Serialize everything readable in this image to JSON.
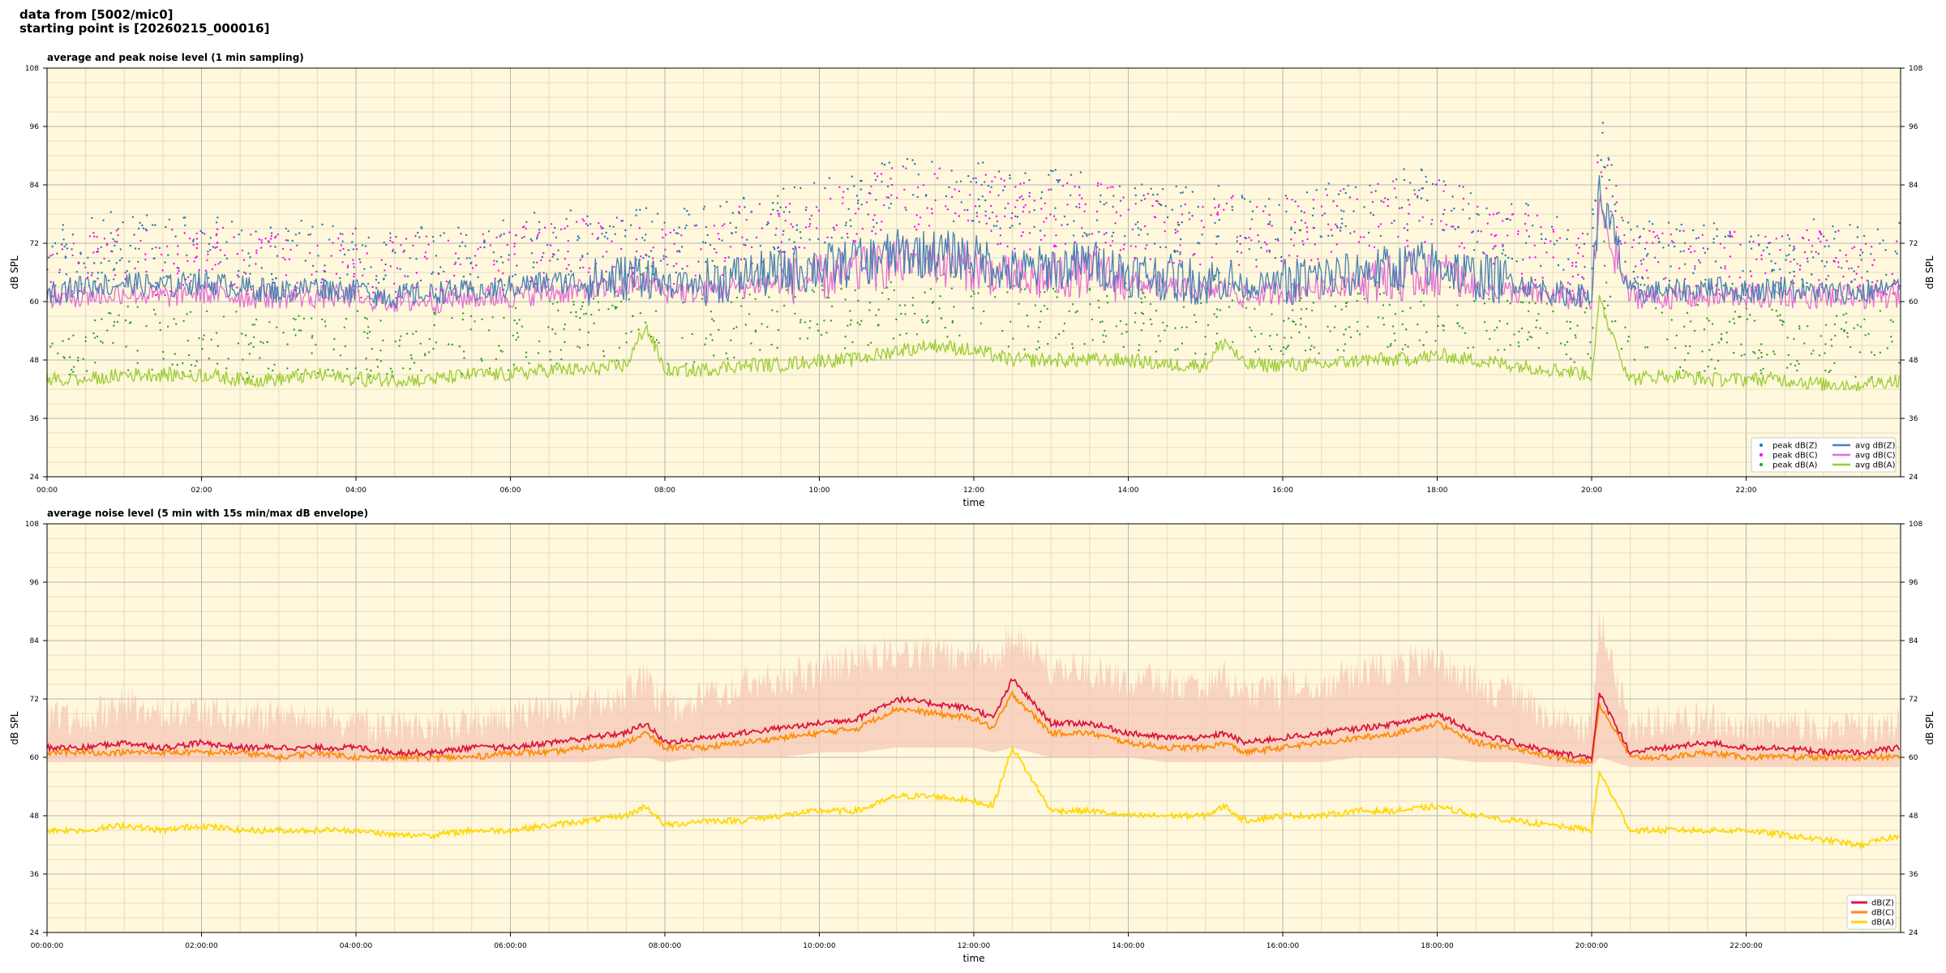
{
  "header": {
    "line1": "data from [5002/mic0]",
    "line2": "starting point is [20260215_000016]"
  },
  "colors": {
    "plot_bg": "#fff8dc",
    "grid_major": "#b5b5b5",
    "grid_minor": "#e3dcc0",
    "peak_z": "#1f77b4",
    "peak_c": "#ff00ff",
    "peak_a": "#2ca02c",
    "avg_z": "#4a7fb5",
    "avg_c": "#e36fd6",
    "avg_a": "#9acd32",
    "env": "#f6c8b8",
    "z": "#dc143c",
    "c": "#ff8c00",
    "a": "#ffd700"
  },
  "chart_data": [
    {
      "type": "line",
      "title": "average and peak noise level (1 min sampling)",
      "xlabel": "time",
      "ylabel": "dB SPL",
      "xlim_hours": [
        0,
        24
      ],
      "ylim": [
        24,
        108
      ],
      "yticks": [
        24,
        36,
        48,
        60,
        72,
        84,
        96,
        108
      ],
      "xtick_labels": [
        "00:00",
        "02:00",
        "04:00",
        "06:00",
        "08:00",
        "10:00",
        "12:00",
        "14:00",
        "16:00",
        "18:00",
        "20:00",
        "22:00"
      ],
      "grid": true,
      "legend_position": "lower-right",
      "legend": [
        "peak dB(Z)",
        "peak dB(C)",
        "peak dB(A)",
        "avg dB(Z)",
        "avg dB(C)",
        "avg dB(A)"
      ],
      "x_hours": [
        0,
        0.5,
        1,
        1.5,
        2,
        2.5,
        3,
        3.5,
        4,
        4.5,
        5,
        5.5,
        6,
        6.5,
        7,
        7.5,
        7.75,
        8,
        8.5,
        9,
        9.5,
        10,
        10.5,
        11,
        11.5,
        12,
        12.25,
        12.5,
        13,
        13.5,
        14,
        14.5,
        15,
        15.25,
        15.5,
        16,
        16.5,
        17,
        17.5,
        18,
        18.5,
        19,
        19.5,
        20,
        20.1,
        20.5,
        21,
        21.5,
        22,
        22.5,
        23,
        23.5,
        24
      ],
      "series": [
        {
          "name": "avg dB(Z)",
          "values": [
            62,
            63,
            64,
            63,
            64,
            63,
            62,
            63,
            62,
            61,
            62,
            62,
            63,
            64,
            64,
            65,
            66,
            63,
            64,
            65,
            66,
            67,
            68,
            70,
            70,
            69,
            68,
            66,
            67,
            68,
            66,
            65,
            64,
            65,
            63,
            64,
            65,
            66,
            67,
            68,
            65,
            64,
            62,
            61,
            82,
            62,
            62,
            63,
            62,
            63,
            62,
            62,
            63
          ]
        },
        {
          "name": "avg dB(C)",
          "values": [
            61,
            61,
            62,
            61,
            62,
            61,
            61,
            61,
            61,
            60,
            60,
            61,
            61,
            62,
            62,
            63,
            64,
            62,
            62,
            63,
            64,
            65,
            66,
            68,
            68,
            67,
            66,
            64,
            65,
            66,
            64,
            63,
            62,
            63,
            61,
            62,
            63,
            64,
            65,
            66,
            63,
            62,
            61,
            60,
            80,
            61,
            61,
            61,
            61,
            61,
            61,
            61,
            61
          ]
        },
        {
          "name": "avg dB(A)",
          "values": [
            44,
            44,
            45,
            45,
            45,
            44,
            44,
            45,
            44,
            44,
            44,
            45,
            45,
            46,
            46,
            47,
            55,
            46,
            46,
            47,
            47,
            48,
            48,
            50,
            51,
            50,
            49,
            48,
            48,
            48,
            48,
            47,
            47,
            52,
            47,
            47,
            47,
            48,
            48,
            49,
            48,
            47,
            46,
            45,
            60,
            44,
            45,
            44,
            44,
            44,
            43,
            43,
            44
          ]
        },
        {
          "name": "peak dB(Z)",
          "values": [
            67,
            68,
            70,
            68,
            69,
            68,
            67,
            68,
            67,
            66,
            67,
            67,
            68,
            70,
            70,
            71,
            73,
            69,
            71,
            73,
            74,
            76,
            78,
            81,
            81,
            80,
            79,
            77,
            78,
            78,
            76,
            75,
            74,
            76,
            73,
            74,
            75,
            77,
            78,
            79,
            75,
            73,
            69,
            67,
            91,
            67,
            68,
            68,
            67,
            68,
            68,
            67,
            68
          ]
        },
        {
          "name": "peak dB(C)",
          "values": [
            65,
            66,
            67,
            66,
            67,
            66,
            65,
            66,
            65,
            64,
            65,
            65,
            66,
            68,
            68,
            69,
            71,
            67,
            69,
            71,
            72,
            74,
            76,
            79,
            79,
            78,
            77,
            75,
            76,
            76,
            74,
            73,
            72,
            74,
            71,
            72,
            73,
            75,
            76,
            77,
            73,
            71,
            67,
            65,
            89,
            65,
            66,
            66,
            65,
            66,
            66,
            65,
            66
          ]
        },
        {
          "name": "peak dB(A)",
          "values": [
            49,
            49,
            50,
            50,
            50,
            49,
            49,
            50,
            49,
            49,
            49,
            50,
            50,
            51,
            52,
            53,
            60,
            52,
            52,
            53,
            54,
            55,
            55,
            57,
            58,
            57,
            56,
            55,
            55,
            55,
            55,
            54,
            54,
            58,
            54,
            54,
            54,
            55,
            55,
            56,
            55,
            54,
            52,
            51,
            66,
            50,
            51,
            50,
            50,
            50,
            49,
            49,
            50
          ]
        }
      ]
    },
    {
      "type": "line",
      "title": "average noise level (5 min with 15s min/max dB envelope)",
      "xlabel": "time",
      "ylabel": "dB SPL",
      "xlim_hours": [
        0,
        24
      ],
      "ylim": [
        24,
        108
      ],
      "yticks": [
        24,
        36,
        48,
        60,
        72,
        84,
        96,
        108
      ],
      "xtick_labels": [
        "00:00:00",
        "02:00:00",
        "04:00:00",
        "06:00:00",
        "08:00:00",
        "10:00:00",
        "12:00:00",
        "14:00:00",
        "16:00:00",
        "18:00:00",
        "20:00:00",
        "22:00:00"
      ],
      "grid": true,
      "legend_position": "lower-right",
      "legend": [
        "dB(Z)",
        "dB(C)",
        "dB(A)"
      ],
      "x_hours": [
        0,
        0.5,
        1,
        1.5,
        2,
        2.5,
        3,
        3.5,
        4,
        4.5,
        5,
        5.5,
        6,
        6.5,
        7,
        7.5,
        7.75,
        8,
        8.5,
        9,
        9.5,
        10,
        10.5,
        11,
        11.5,
        12,
        12.25,
        12.5,
        13,
        13.5,
        14,
        14.5,
        15,
        15.25,
        15.5,
        16,
        16.5,
        17,
        17.5,
        18,
        18.5,
        19,
        19.5,
        20,
        20.1,
        20.5,
        21,
        21.5,
        22,
        22.5,
        23,
        23.5,
        24
      ],
      "series": [
        {
          "name": "dB(Z)",
          "values": [
            62,
            62,
            63,
            62,
            63,
            62,
            62,
            62,
            62,
            61,
            61,
            62,
            62,
            63,
            64,
            65,
            67,
            63,
            64,
            65,
            66,
            67,
            68,
            72,
            71,
            70,
            68,
            76,
            67,
            67,
            65,
            64,
            64,
            65,
            63,
            64,
            65,
            66,
            67,
            69,
            65,
            63,
            61,
            60,
            73,
            61,
            62,
            63,
            62,
            62,
            61,
            61,
            62
          ]
        },
        {
          "name": "dB(C)",
          "values": [
            61,
            61,
            61,
            61,
            61,
            61,
            60,
            61,
            60,
            60,
            60,
            60,
            61,
            61,
            62,
            63,
            65,
            62,
            62,
            63,
            64,
            65,
            66,
            70,
            69,
            68,
            66,
            73,
            65,
            65,
            63,
            62,
            62,
            63,
            61,
            62,
            63,
            64,
            65,
            67,
            63,
            62,
            60,
            59,
            71,
            60,
            60,
            61,
            60,
            60,
            60,
            60,
            60
          ]
        },
        {
          "name": "dB(A)",
          "values": [
            45,
            45,
            46,
            45,
            46,
            45,
            45,
            45,
            45,
            44,
            44,
            45,
            45,
            46,
            47,
            48,
            50,
            46,
            47,
            47,
            48,
            49,
            49,
            52,
            52,
            51,
            50,
            62,
            49,
            49,
            48,
            48,
            48,
            50,
            47,
            48,
            48,
            49,
            49,
            50,
            48,
            47,
            46,
            45,
            57,
            45,
            45,
            45,
            45,
            44,
            43,
            42,
            44
          ]
        },
        {
          "name": "envelope max",
          "values": [
            72,
            72,
            75,
            73,
            74,
            72,
            72,
            72,
            71,
            70,
            70,
            71,
            72,
            74,
            75,
            77,
            80,
            74,
            76,
            79,
            80,
            82,
            84,
            86,
            85,
            85,
            83,
            90,
            82,
            82,
            80,
            79,
            78,
            80,
            77,
            78,
            79,
            81,
            83,
            84,
            79,
            77,
            72,
            70,
            93,
            70,
            71,
            72,
            70,
            71,
            70,
            70,
            71
          ]
        },
        {
          "name": "envelope min",
          "values": [
            59,
            59,
            59,
            59,
            59,
            59,
            59,
            59,
            59,
            59,
            59,
            59,
            59,
            59,
            59,
            60,
            60,
            59,
            60,
            60,
            60,
            61,
            61,
            62,
            62,
            62,
            61,
            62,
            60,
            60,
            60,
            59,
            59,
            59,
            59,
            59,
            59,
            60,
            60,
            60,
            59,
            59,
            58,
            58,
            60,
            58,
            58,
            58,
            58,
            58,
            58,
            58,
            58
          ]
        }
      ]
    }
  ]
}
